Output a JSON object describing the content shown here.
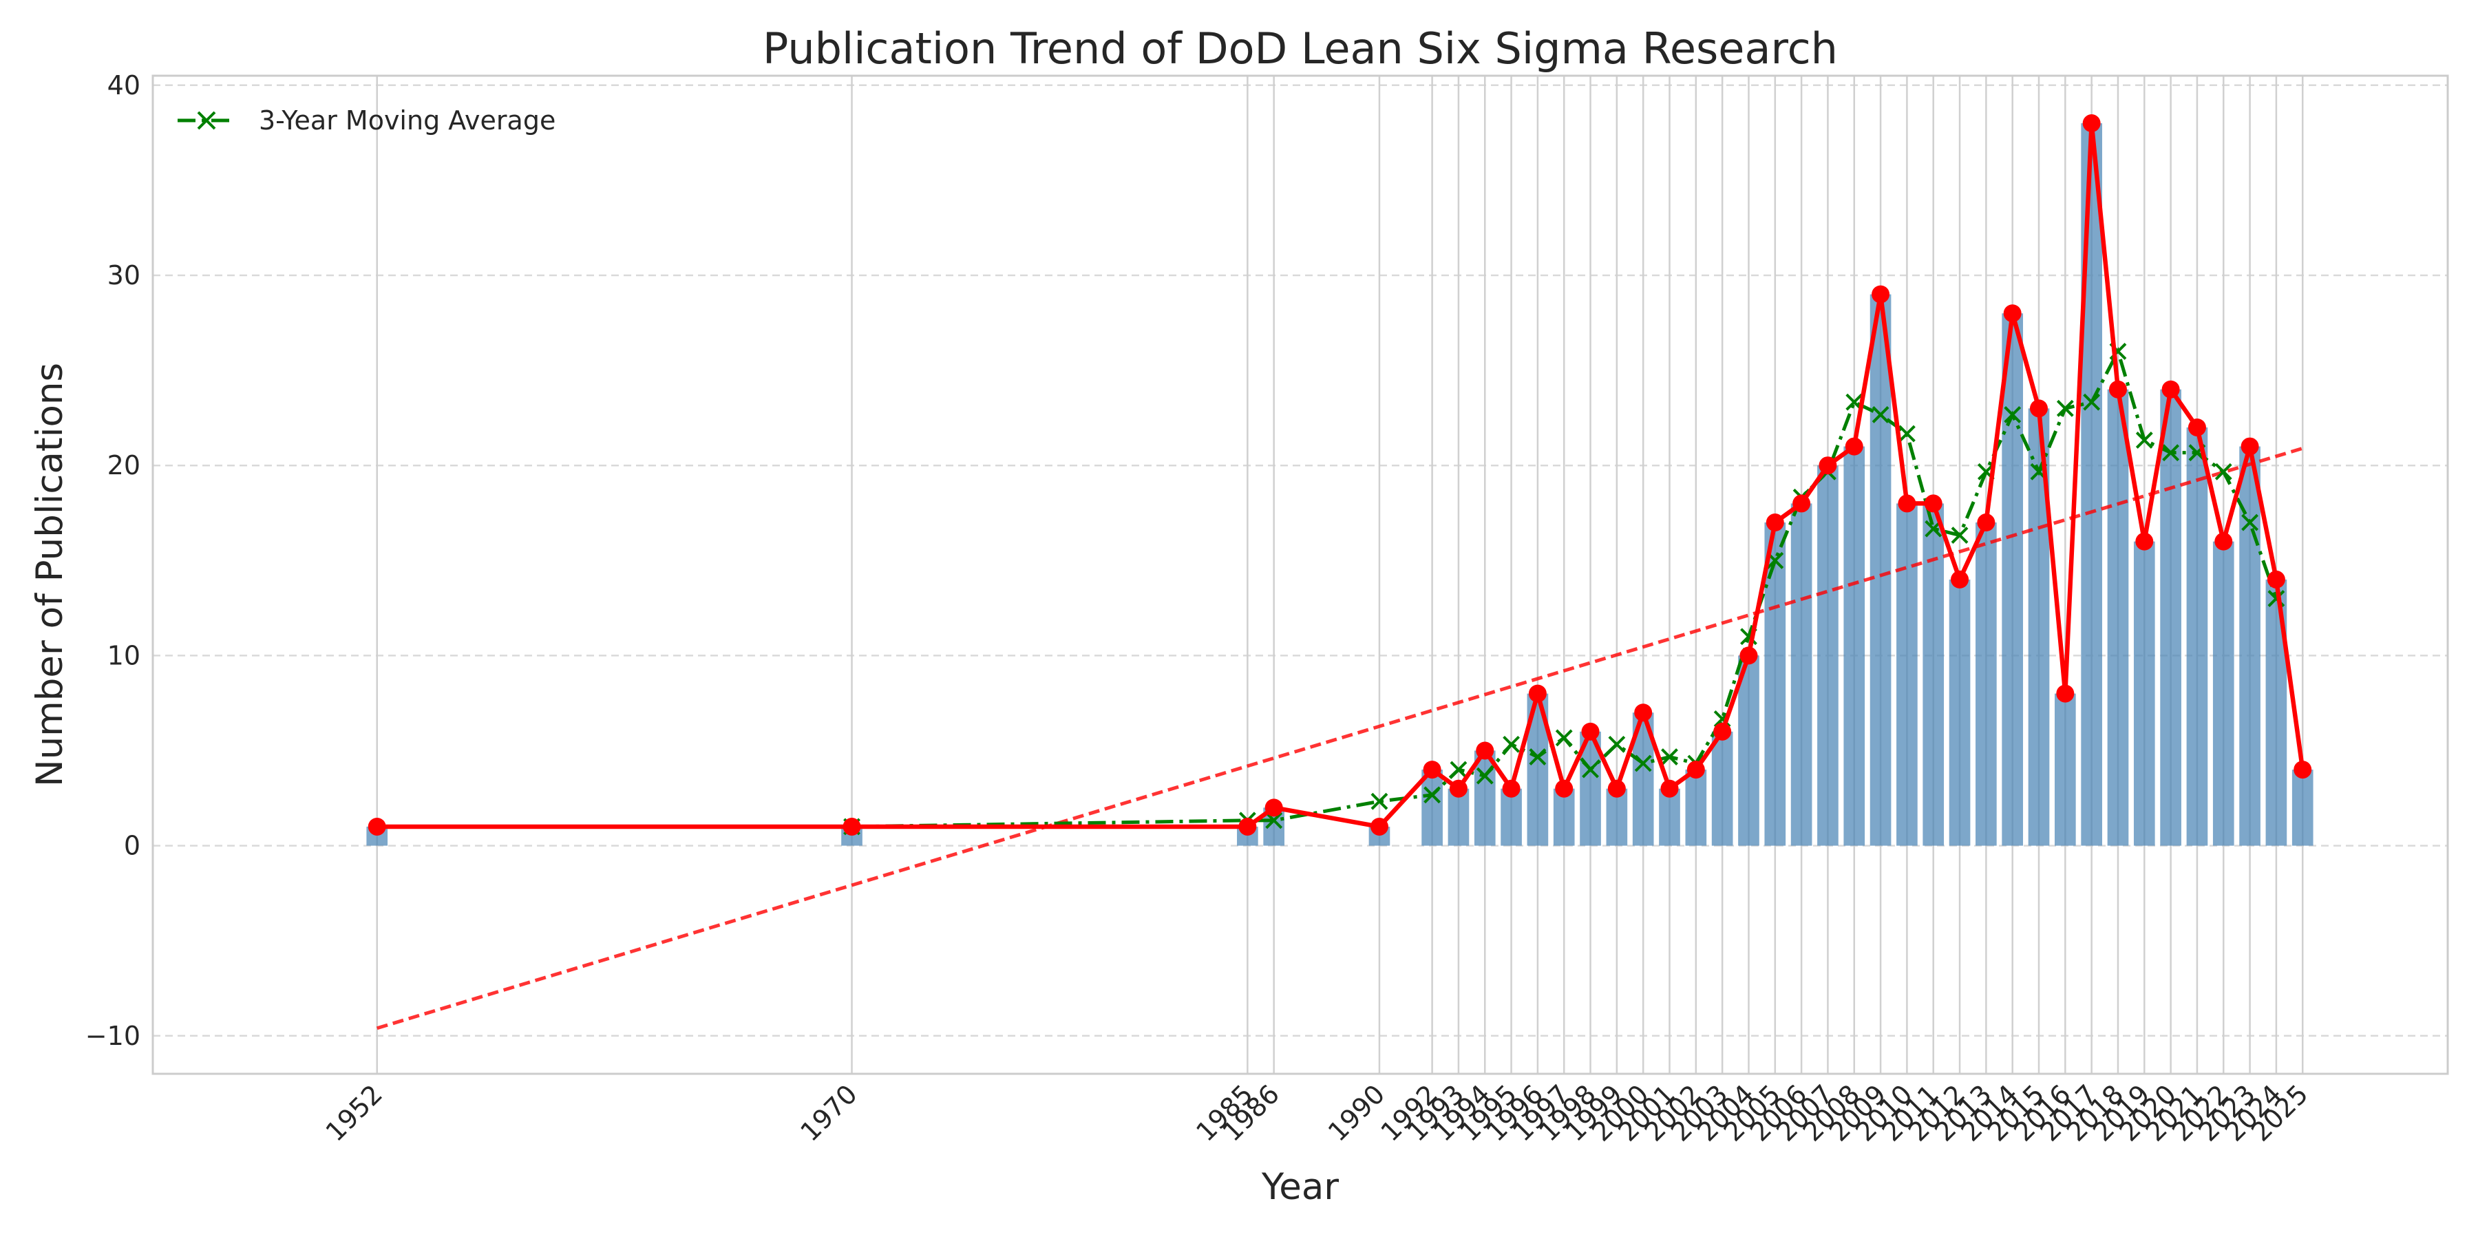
{
  "chart_data": {
    "type": "bar",
    "title": "Publication Trend of DoD Lean Six Sigma Research",
    "xlabel": "Year",
    "ylabel": "Number of Publications",
    "ylim": [
      -12,
      40.5
    ],
    "xlim": [
      1943.5,
      2030.5
    ],
    "yticks": [
      -10,
      0,
      10,
      20,
      30,
      40
    ],
    "ytick_labels": [
      "−10",
      "0",
      "10",
      "20",
      "30",
      "40"
    ],
    "grid": true,
    "legend_position": "top-left",
    "categories": [
      1952,
      1970,
      1985,
      1986,
      1990,
      1992,
      1993,
      1994,
      1995,
      1996,
      1997,
      1998,
      1999,
      2000,
      2001,
      2002,
      2003,
      2004,
      2005,
      2006,
      2007,
      2008,
      2009,
      2010,
      2011,
      2012,
      2013,
      2014,
      2015,
      2016,
      2017,
      2018,
      2019,
      2020,
      2021,
      2022,
      2023,
      2024,
      2025
    ],
    "series": [
      {
        "kind": "bar",
        "color": "#4682b4",
        "values": [
          1,
          1,
          1,
          2,
          1,
          4,
          3,
          5,
          3,
          8,
          3,
          6,
          3,
          7,
          3,
          4,
          6,
          10,
          17,
          18,
          20,
          21,
          29,
          18,
          18,
          14,
          17,
          28,
          23,
          8,
          38,
          24,
          16,
          24,
          22,
          16,
          21,
          14,
          4
        ]
      },
      {
        "kind": "line",
        "color": "#ff0000",
        "marker": "circle",
        "values": [
          1,
          1,
          1,
          2,
          1,
          4,
          3,
          5,
          3,
          8,
          3,
          6,
          3,
          7,
          3,
          4,
          6,
          10,
          17,
          18,
          20,
          21,
          29,
          18,
          18,
          14,
          17,
          28,
          23,
          8,
          38,
          24,
          16,
          24,
          22,
          16,
          21,
          14,
          4
        ]
      },
      {
        "kind": "line",
        "name": "3-Year Moving Average",
        "color": "#008000",
        "style": "dash-dot",
        "marker": "x",
        "values": [
          null,
          1.0,
          1.33,
          1.33,
          2.33,
          2.67,
          4.0,
          3.67,
          5.33,
          4.67,
          5.67,
          4.0,
          5.33,
          4.33,
          4.67,
          4.33,
          6.67,
          11.0,
          15.0,
          18.33,
          19.67,
          23.33,
          22.67,
          21.67,
          16.67,
          16.33,
          19.67,
          22.67,
          19.67,
          23.0,
          23.33,
          26.0,
          21.33,
          20.67,
          20.67,
          19.67,
          17.0,
          13.0,
          null
        ]
      },
      {
        "kind": "trend",
        "color": "#ff0000",
        "style": "dashed",
        "x": [
          1952,
          2025
        ],
        "values": [
          -9.6,
          20.9
        ]
      }
    ]
  }
}
